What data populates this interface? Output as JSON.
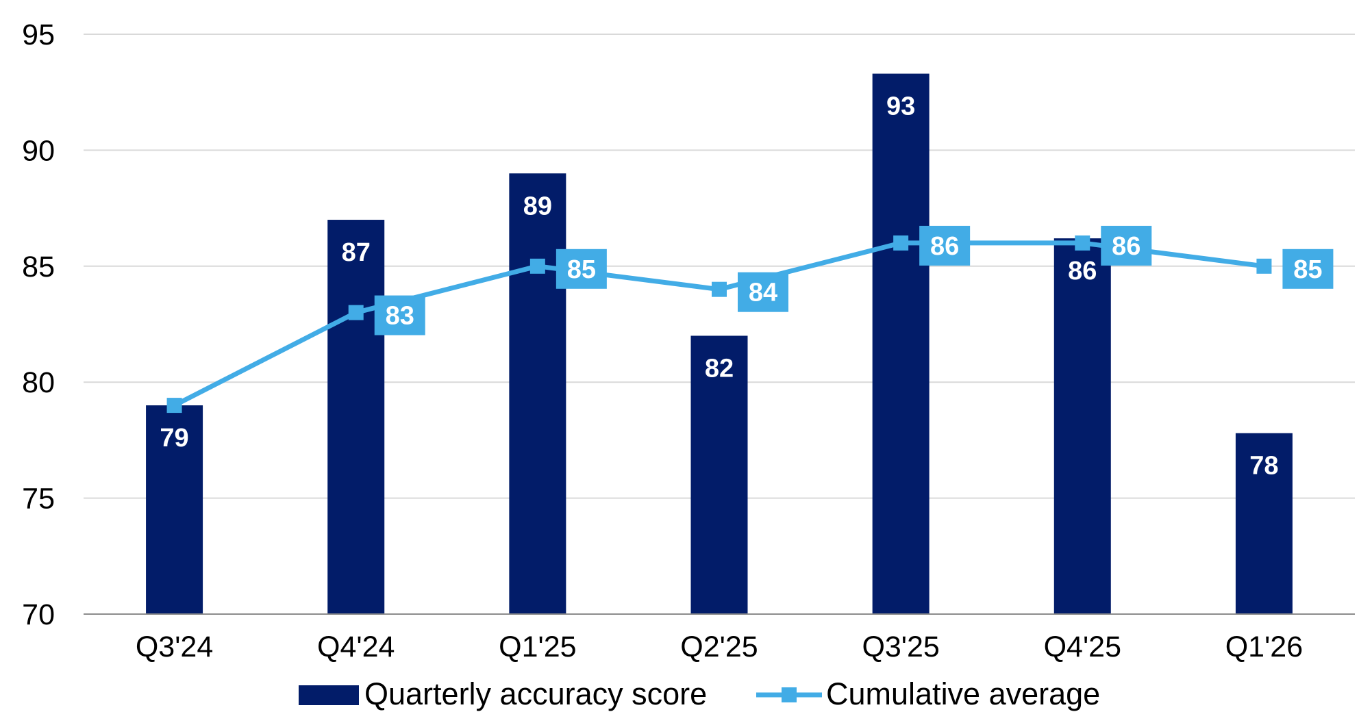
{
  "chart_data": {
    "type": "bar",
    "categories": [
      "Q3'24",
      "Q4'24",
      "Q1'25",
      "Q2'25",
      "Q3'25",
      "Q4'25",
      "Q1'26"
    ],
    "series": [
      {
        "name": "Quarterly accuracy score",
        "type": "bar",
        "values": [
          79,
          87,
          89,
          82,
          93.3,
          86.2,
          77.8
        ],
        "labels": [
          "79",
          "87",
          "89",
          "82",
          "93",
          "86",
          "78"
        ],
        "color": "#021C69",
        "label_color": "#FFFFFF"
      },
      {
        "name": "Cumulative average",
        "type": "line",
        "values": [
          79,
          83,
          85,
          84,
          86,
          86,
          85
        ],
        "labels": [
          "",
          "83",
          "85",
          "84",
          "86",
          "86",
          "85"
        ],
        "color": "#42ACE6",
        "marker": "square",
        "label_color": "#FFFFFF"
      }
    ],
    "ylim": [
      70,
      95
    ],
    "yticks": [
      70,
      75,
      80,
      85,
      90,
      95
    ],
    "ytick_labels": [
      "70",
      "75",
      "80",
      "85",
      "90",
      "95"
    ],
    "grid": true,
    "grid_color": "#D9D9D9",
    "axis_color": "#8C8C8C",
    "legend_position": "bottom-center"
  }
}
